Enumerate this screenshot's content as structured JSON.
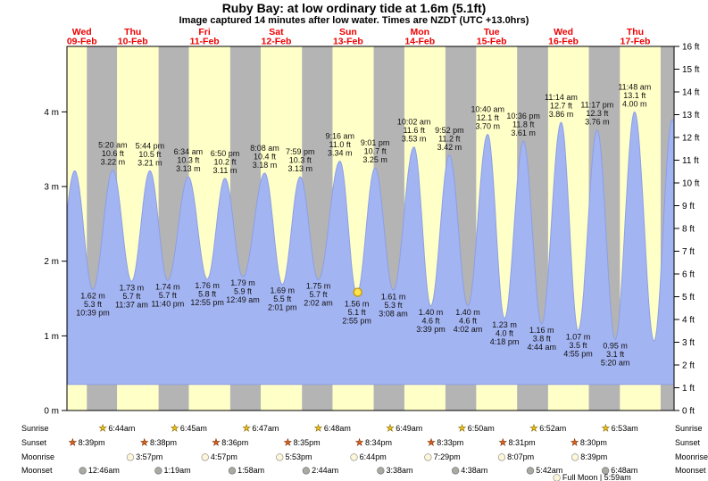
{
  "header": {
    "title": "Ruby Bay: at low  ordinary tide at 1.6m (5.1ft)",
    "subtitle": "Image captured 14 minutes after low water. Times are NZDT (UTC +13.0hrs)"
  },
  "chart_data": {
    "type": "area",
    "title": "Ruby Bay: at low  ordinary tide at 1.6m (5.1ft)",
    "subtitle": "Image captured 14 minutes after low water. Times are NZDT (UTC +13.0hrs)",
    "x_days": [
      {
        "name": "Wed",
        "date": "09-Feb"
      },
      {
        "name": "Thu",
        "date": "10-Feb"
      },
      {
        "name": "Fri",
        "date": "11-Feb"
      },
      {
        "name": "Sat",
        "date": "12-Feb"
      },
      {
        "name": "Sun",
        "date": "13-Feb"
      },
      {
        "name": "Mon",
        "date": "14-Feb"
      },
      {
        "name": "Tue",
        "date": "15-Feb"
      },
      {
        "name": "Wed",
        "date": "16-Feb"
      },
      {
        "name": "Thu",
        "date": "17-Feb"
      }
    ],
    "y_left_unit": "m",
    "y_right_unit": "ft",
    "left_ticks_m": [
      0,
      1,
      2,
      3,
      4
    ],
    "right_ticks_ft": [
      0,
      1,
      2,
      3,
      4,
      5,
      6,
      7,
      8,
      9,
      10,
      11,
      12,
      13,
      14,
      15,
      16
    ],
    "ylim_left_m": [
      0,
      4.877
    ],
    "ylim_right_ft": [
      0,
      16
    ],
    "fill_base_m": 0.35,
    "colors": {
      "day_bg": "#ffffc8",
      "night_bg": "#b4b4b4",
      "tide_fill": "#a3b4f2",
      "tide_stroke": "#8c9fe6",
      "day_label": "#ee0000",
      "sun_marker_fill": "#ffe14d",
      "sun_marker_stroke": "#bb9900",
      "sunrise_icon": "#f5c518",
      "sunrise_icon_stroke": "#8a6d00",
      "sunset_icon": "#e8641b",
      "sunset_icon_stroke": "#7a2d00",
      "moonrise_icon": "#fdf6d8",
      "moonrise_icon_stroke": "#8a8a8a",
      "moonset_icon": "#abaaa2",
      "moonset_icon_stroke": "#6e6e6e"
    },
    "tide_extremes": [
      {
        "t": -2.5,
        "height_m": 1.6,
        "type": "low"
      },
      {
        "t": 4.5,
        "height_m": 3.2,
        "type": "high"
      },
      {
        "t": 10.3,
        "height_m": 1.66,
        "type": "low"
      },
      {
        "t": 16.6,
        "height_m": 3.21,
        "type": "high"
      },
      {
        "t": 22.65,
        "height_m": 1.62,
        "type": "low",
        "lines": [
          "1.62 m",
          "5.3 ft",
          "10:39 pm"
        ]
      },
      {
        "t": 29.33,
        "height_m": 3.22,
        "type": "high",
        "lines": [
          "5:20 am",
          "10.6 ft",
          "3.22 m"
        ]
      },
      {
        "t": 35.62,
        "height_m": 1.73,
        "type": "low",
        "lines": [
          "1.73 m",
          "5.7 ft",
          "11:37 am"
        ]
      },
      {
        "t": 41.73,
        "height_m": 3.21,
        "type": "high",
        "lines": [
          "5:44 pm",
          "10.5 ft",
          "3.21 m"
        ]
      },
      {
        "t": 47.67,
        "height_m": 1.74,
        "type": "low",
        "lines": [
          "1.74 m",
          "5.7 ft",
          "11:40 pm"
        ]
      },
      {
        "t": 54.57,
        "height_m": 3.13,
        "type": "high",
        "lines": [
          "6:34 am",
          "10.3 ft",
          "3.13 m"
        ]
      },
      {
        "t": 60.92,
        "height_m": 1.76,
        "type": "low",
        "lines": [
          "1.76 m",
          "5.8 ft",
          "12:55 pm"
        ]
      },
      {
        "t": 66.83,
        "height_m": 3.11,
        "type": "high",
        "lines": [
          "6:50 pm",
          "10.2 ft",
          "3.11 m"
        ]
      },
      {
        "t": 72.82,
        "height_m": 1.79,
        "type": "low",
        "lines": [
          "1.79 m",
          "5.9 ft",
          "12:49 am"
        ]
      },
      {
        "t": 80.13,
        "height_m": 3.18,
        "type": "high",
        "lines": [
          "8:08 am",
          "10.4 ft",
          "3.18 m"
        ]
      },
      {
        "t": 86.02,
        "height_m": 1.69,
        "type": "low",
        "lines": [
          "1.69 m",
          "5.5 ft",
          "2:01 pm"
        ]
      },
      {
        "t": 91.98,
        "height_m": 3.13,
        "type": "high",
        "lines": [
          "7:59 pm",
          "10.3 ft",
          "3.13 m"
        ]
      },
      {
        "t": 98.03,
        "height_m": 1.75,
        "type": "low",
        "lines": [
          "1.75 m",
          "5.7 ft",
          "2:02 am"
        ]
      },
      {
        "t": 105.27,
        "height_m": 3.34,
        "type": "high",
        "lines": [
          "9:16 am",
          "11.0 ft",
          "3.34 m"
        ]
      },
      {
        "t": 110.92,
        "height_m": 1.56,
        "type": "low",
        "lines": [
          "1.56 m",
          "5.1 ft",
          "2:55 pm"
        ],
        "marker": true
      },
      {
        "t": 117.02,
        "height_m": 3.25,
        "type": "high",
        "lines": [
          "9:01 pm",
          "10.7 ft",
          "3.25 m"
        ]
      },
      {
        "t": 123.13,
        "height_m": 1.61,
        "type": "low",
        "lines": [
          "1.61 m",
          "5.3 ft",
          "3:08 am"
        ]
      },
      {
        "t": 130.03,
        "height_m": 3.53,
        "type": "high",
        "lines": [
          "10:02 am",
          "11.6 ft",
          "3.53 m"
        ]
      },
      {
        "t": 135.65,
        "height_m": 1.4,
        "type": "low",
        "lines": [
          "1.40 m",
          "4.6 ft",
          "3:39 pm"
        ]
      },
      {
        "t": 141.87,
        "height_m": 3.42,
        "type": "high",
        "lines": [
          "9:52 pm",
          "11.2 ft",
          "3.42 m"
        ]
      },
      {
        "t": 148.03,
        "height_m": 1.4,
        "type": "low",
        "lines": [
          "1.40 m",
          "4.6 ft",
          "4:02 am"
        ]
      },
      {
        "t": 154.67,
        "height_m": 3.7,
        "type": "high",
        "lines": [
          "10:40 am",
          "12.1 ft",
          "3.70 m"
        ]
      },
      {
        "t": 160.3,
        "height_m": 1.23,
        "type": "low",
        "lines": [
          "1.23 m",
          "4.0 ft",
          "4:18 pm"
        ]
      },
      {
        "t": 166.6,
        "height_m": 3.61,
        "type": "high",
        "lines": [
          "10:36 pm",
          "11.8 ft",
          "3.61 m"
        ]
      },
      {
        "t": 172.73,
        "height_m": 1.16,
        "type": "low",
        "lines": [
          "1.16 m",
          "3.8 ft",
          "4:44 am"
        ]
      },
      {
        "t": 179.23,
        "height_m": 3.86,
        "type": "high",
        "lines": [
          "11:14 am",
          "12.7 ft",
          "3.86 m"
        ]
      },
      {
        "t": 184.92,
        "height_m": 1.07,
        "type": "low",
        "lines": [
          "1.07 m",
          "3.5 ft",
          "4:55 pm"
        ]
      },
      {
        "t": 191.28,
        "height_m": 3.76,
        "type": "high",
        "lines": [
          "11:17 pm",
          "12.3 ft",
          "3.76 m"
        ]
      },
      {
        "t": 197.33,
        "height_m": 0.95,
        "type": "low",
        "lines": [
          "0.95 m",
          "3.1 ft",
          "5:20 am"
        ]
      },
      {
        "t": 203.8,
        "height_m": 4.0,
        "type": "high",
        "lines": [
          "11:48 am",
          "13.1 ft",
          "4.00 m"
        ]
      },
      {
        "t": 210.3,
        "height_m": 0.93,
        "type": "low"
      },
      {
        "t": 216.4,
        "height_m": 3.9,
        "type": "high"
      },
      {
        "t": 222.8,
        "height_m": 1.0,
        "type": "low"
      }
    ],
    "astro": {
      "row_labels": [
        "Sunrise",
        "Sunset",
        "Moonrise",
        "Moonset"
      ],
      "sunrise": [
        {
          "day": 1,
          "time": "6:44am"
        },
        {
          "day": 2,
          "time": "6:45am"
        },
        {
          "day": 3,
          "time": "6:47am"
        },
        {
          "day": 4,
          "time": "6:48am"
        },
        {
          "day": 5,
          "time": "6:49am"
        },
        {
          "day": 6,
          "time": "6:50am"
        },
        {
          "day": 7,
          "time": "6:52am"
        },
        {
          "day": 8,
          "time": "6:53am"
        }
      ],
      "sunset": [
        {
          "day": 0,
          "time": "8:39pm"
        },
        {
          "day": 1,
          "time": "8:38pm"
        },
        {
          "day": 2,
          "time": "8:36pm"
        },
        {
          "day": 3,
          "time": "8:35pm"
        },
        {
          "day": 4,
          "time": "8:34pm"
        },
        {
          "day": 5,
          "time": "8:33pm"
        },
        {
          "day": 6,
          "time": "8:31pm"
        },
        {
          "day": 7,
          "time": "8:30pm"
        }
      ],
      "moonrise": [
        {
          "day": 1,
          "time": "3:57pm"
        },
        {
          "day": 2,
          "time": "4:57pm"
        },
        {
          "day": 3,
          "time": "5:53pm"
        },
        {
          "day": 4,
          "time": "6:44pm"
        },
        {
          "day": 5,
          "time": "7:29pm"
        },
        {
          "day": 6,
          "time": "8:07pm"
        },
        {
          "day": 7,
          "time": "8:39pm"
        }
      ],
      "moonset": [
        {
          "day": 1,
          "time": "12:46am"
        },
        {
          "day": 2,
          "time": "1:19am"
        },
        {
          "day": 3,
          "time": "1:58am"
        },
        {
          "day": 4,
          "time": "2:44am"
        },
        {
          "day": 5,
          "time": "3:38am"
        },
        {
          "day": 6,
          "time": "4:38am"
        },
        {
          "day": 7,
          "time": "5:42am"
        },
        {
          "day": 8,
          "time": "6:48am"
        }
      ],
      "full_moon": "Full Moon | 5:59am"
    }
  }
}
